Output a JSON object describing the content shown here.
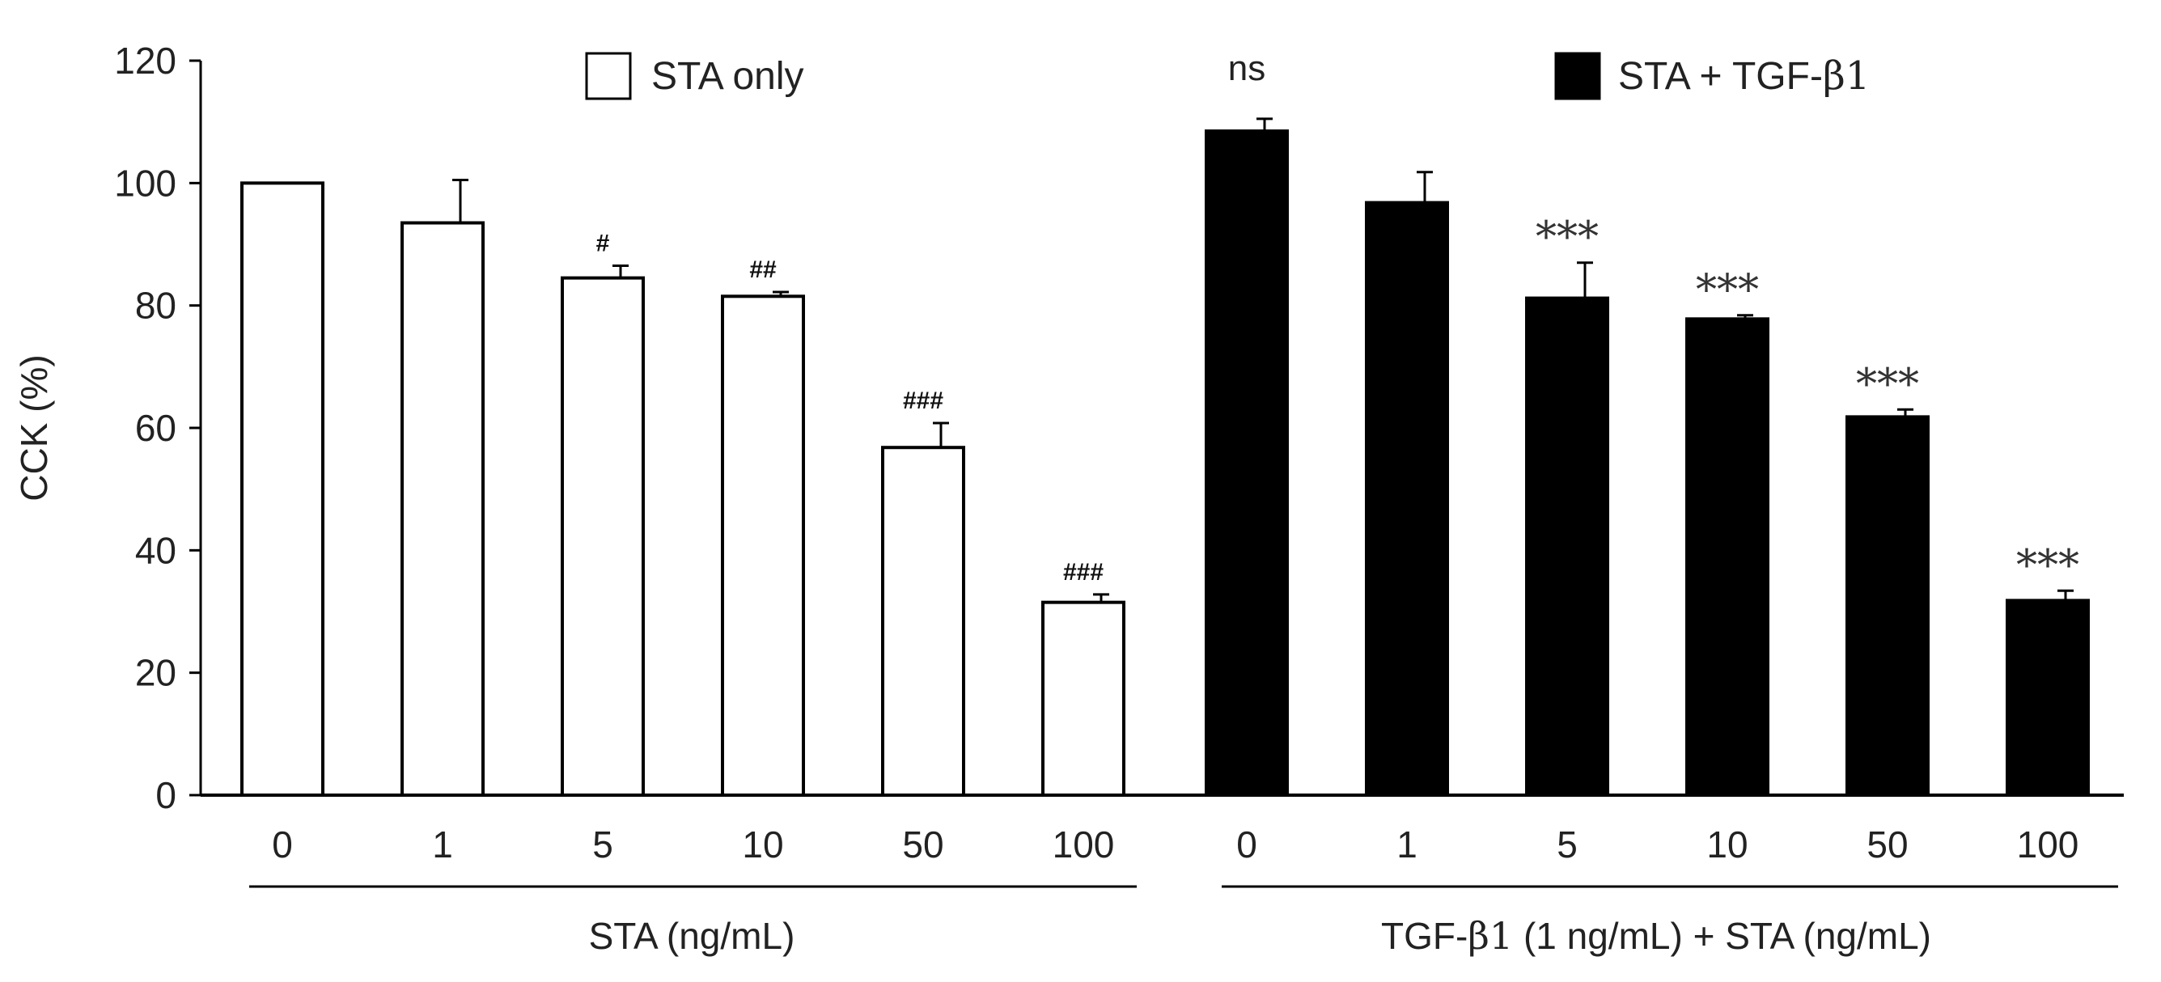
{
  "chart_data": {
    "type": "bar",
    "ylabel": "CCK (%)",
    "ylim": [
      0,
      120
    ],
    "yticks": [
      "0",
      "20",
      "40",
      "60",
      "80",
      "100",
      "120"
    ],
    "groups": [
      {
        "name": "STA only",
        "axis_label": "STA (ng/mL)",
        "fill": "#ffffff",
        "categories": [
          "0",
          "1",
          "5",
          "10",
          "50",
          "100"
        ],
        "values": [
          100,
          93.5,
          84.5,
          81.5,
          56.8,
          31.5
        ],
        "errors": [
          0,
          7,
          2,
          0.7,
          4,
          1.3
        ],
        "significance": [
          "",
          "",
          "#",
          "##",
          "###",
          "###"
        ]
      },
      {
        "name": "STA + TGF-β1",
        "axis_label_prefix": "TGF-",
        "axis_label_beta": "β1",
        "axis_label_suffix": " (1 ng/mL) + STA (ng/mL)",
        "fill": "#000000",
        "categories": [
          "0",
          "1",
          "5",
          "10",
          "50",
          "100"
        ],
        "values": [
          108.5,
          96.8,
          81.2,
          77.8,
          61.8,
          31.8
        ],
        "errors": [
          2,
          5,
          5.8,
          0.6,
          1.2,
          1.6
        ],
        "significance": [
          "ns",
          "",
          "***",
          "***",
          "***",
          "***"
        ]
      }
    ],
    "legend": [
      {
        "label": "STA only",
        "fill": "#ffffff"
      },
      {
        "label_prefix": "STA + TGF-",
        "label_beta": "β1",
        "fill": "#000000"
      }
    ]
  }
}
